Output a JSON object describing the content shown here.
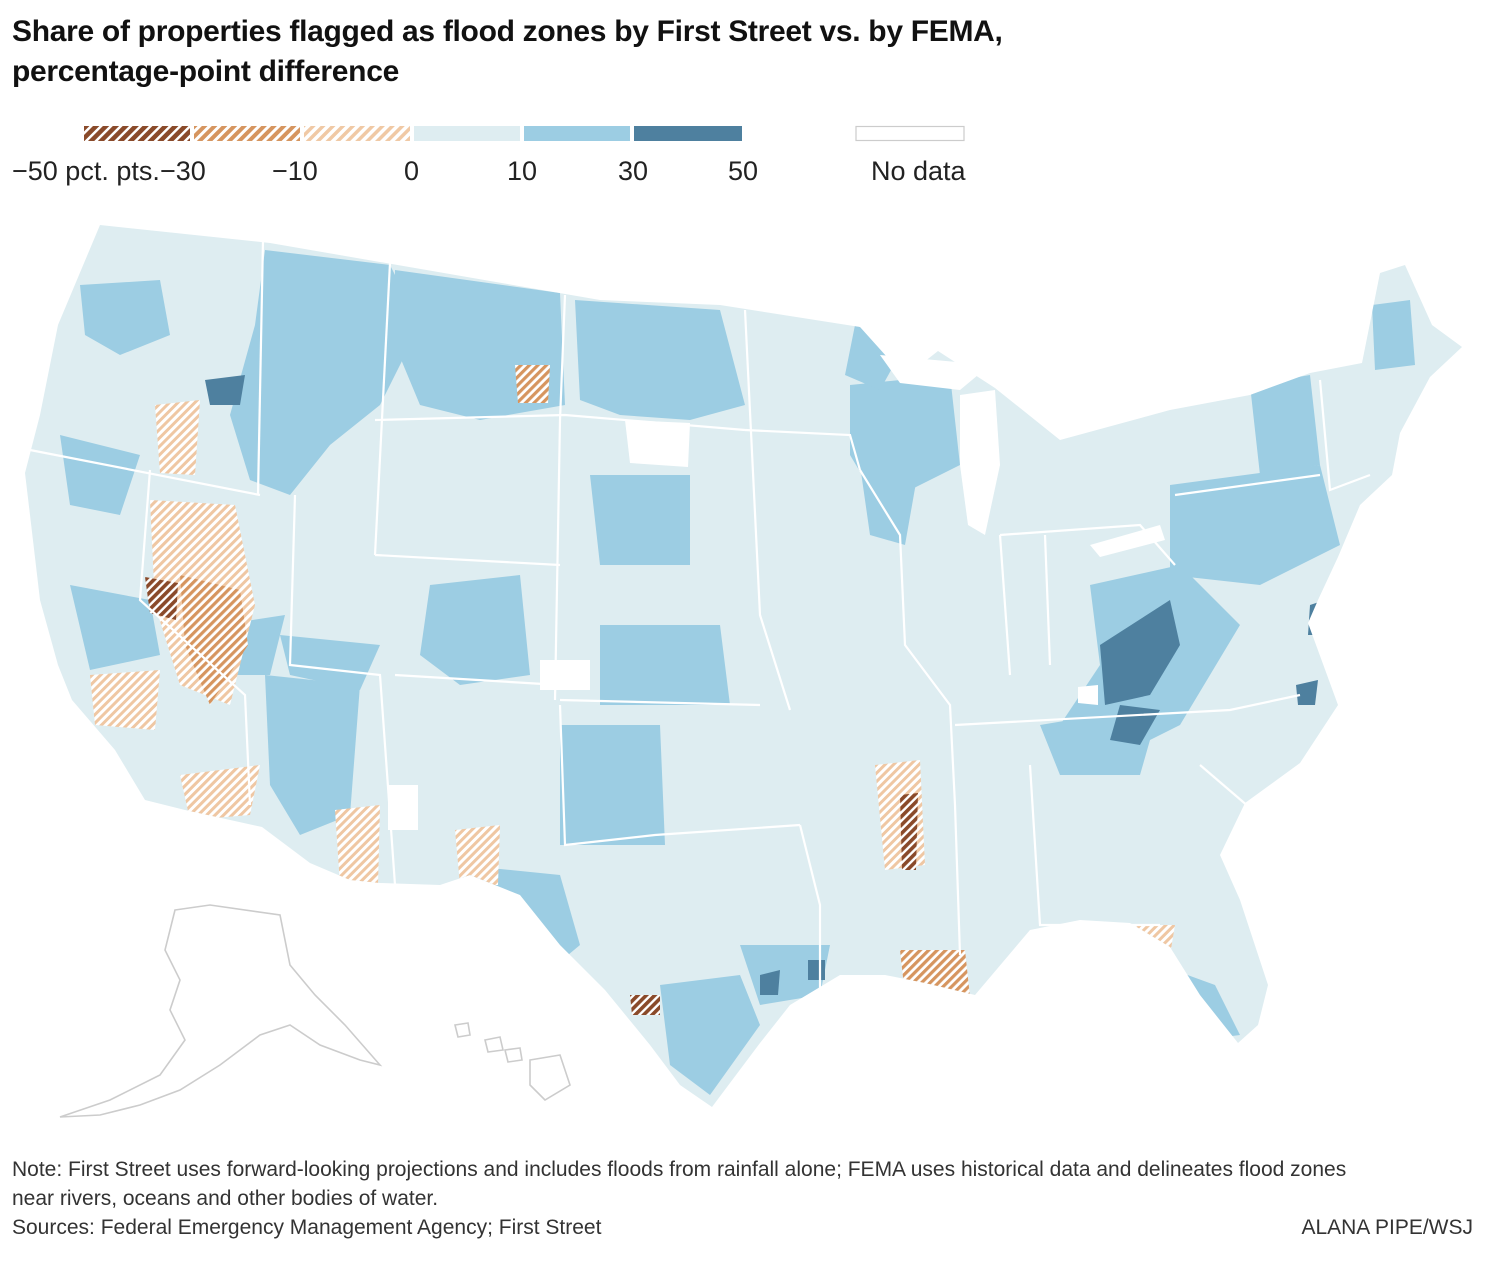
{
  "title_line1": "Share of properties flagged as flood zones by First Street vs. by FEMA,",
  "title_line2": "percentage-point difference",
  "legend": {
    "bins": [
      {
        "range": [
          -50,
          -30
        ],
        "color": "#8a4a2a",
        "pattern": "hatch-dark"
      },
      {
        "range": [
          -30,
          -10
        ],
        "color": "#d6955f",
        "pattern": "hatch-mid"
      },
      {
        "range": [
          -10,
          0
        ],
        "color": "#f0c9a5",
        "pattern": "hatch-light"
      },
      {
        "range": [
          0,
          10
        ],
        "color": "#deedf1"
      },
      {
        "range": [
          10,
          30
        ],
        "color": "#9ccde3"
      },
      {
        "range": [
          30,
          50
        ],
        "color": "#4e809f"
      }
    ],
    "no_data_color": "#ffffff",
    "labels": {
      "m50": "−50 pct. pts.",
      "m30": "−30",
      "m10": "−10",
      "zero": "0",
      "p10": "10",
      "p30": "30",
      "p50": "50",
      "no_data": "No data"
    }
  },
  "map": {
    "region": "Contiguous United States with Alaska and Hawaii insets",
    "dominant_category": "0 to 10",
    "colors": {
      "background_land": "#deedf1",
      "positive_mid": "#9ccde3",
      "positive_high": "#4e809f",
      "negative_light": "#f0c9a5",
      "negative_mid": "#d6955f",
      "negative_dark": "#8a4a2a",
      "inset_outline": "#cccccc"
    }
  },
  "note_line1": "Note: First Street uses forward-looking projections and includes floods from rainfall alone; FEMA uses historical data and delineates flood zones",
  "note_line2": "near rivers, oceans and other bodies of water.",
  "sources": "Sources: Federal Emergency Management Agency; First Street",
  "credit": "ALANA PIPE/WSJ"
}
